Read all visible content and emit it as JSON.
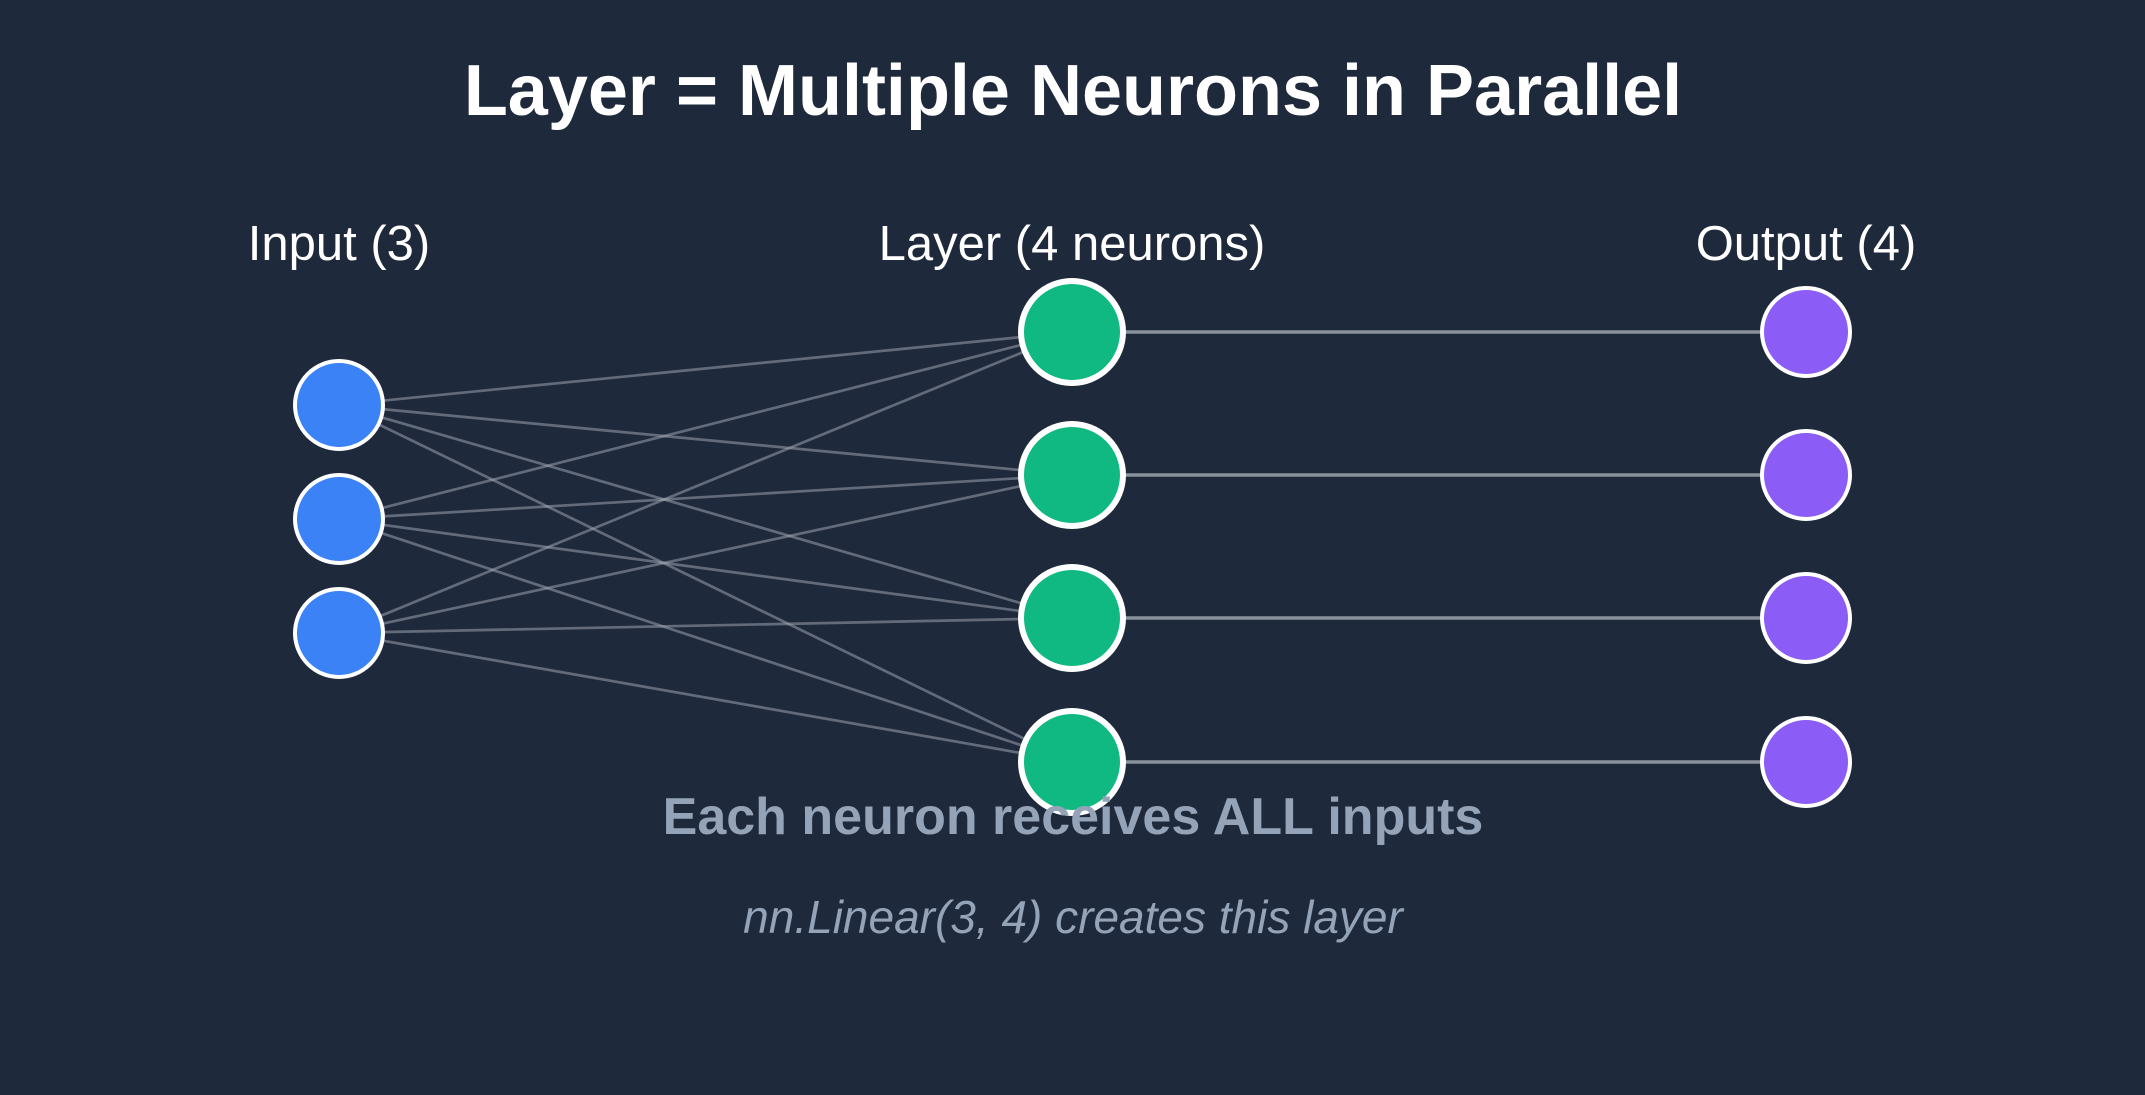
{
  "title": "Layer = Multiple Neurons in Parallel",
  "columns": {
    "input": {
      "label": "Input (3)",
      "count": 3,
      "color": "#3b82f6"
    },
    "layer": {
      "label": "Layer (4 neurons)",
      "count": 4,
      "color": "#10b981"
    },
    "output": {
      "label": "Output (4)",
      "count": 4,
      "color": "#8b5cf6"
    }
  },
  "caption": "Each neuron receives ALL inputs",
  "subcaption": "nn.Linear(3, 4) creates this layer",
  "colors": {
    "background": "#1e293b",
    "edge": "#9ca3af",
    "text": "#ffffff",
    "muted_text": "#94a3b8"
  }
}
